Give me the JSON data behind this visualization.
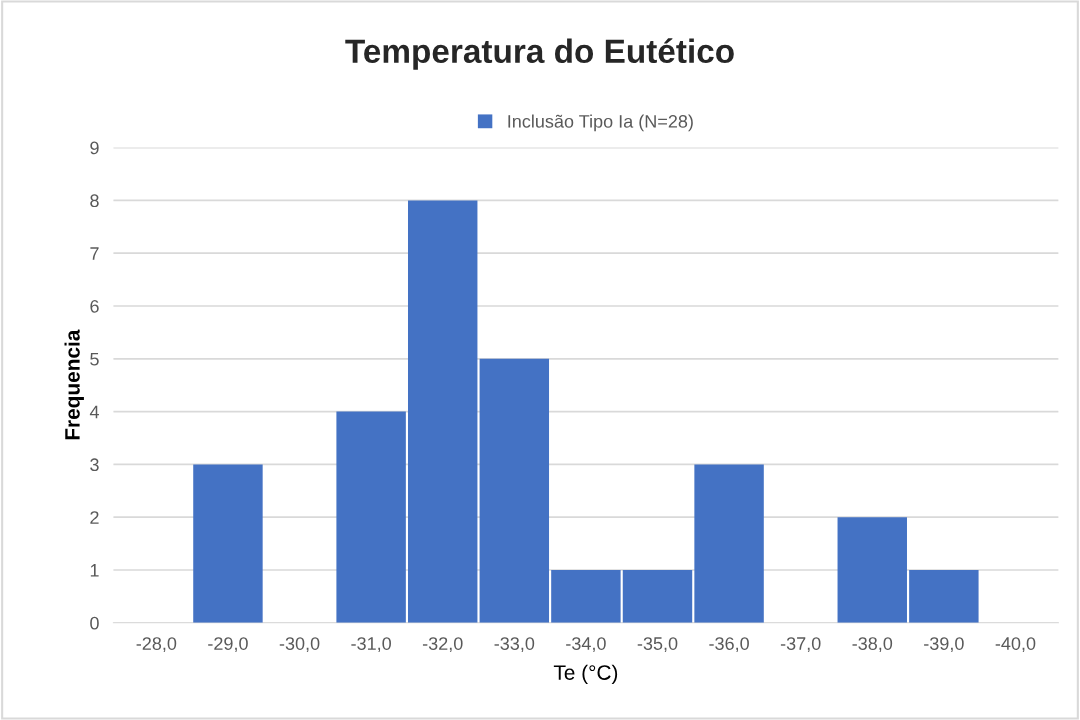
{
  "chart_data": {
    "type": "bar",
    "title": "Temperatura do Eutético",
    "xlabel": "Te (°C)",
    "ylabel": "Frequencia",
    "categories": [
      "-28,0",
      "-29,0",
      "-30,0",
      "-31,0",
      "-32,0",
      "-33,0",
      "-34,0",
      "-35,0",
      "-36,0",
      "-37,0",
      "-38,0",
      "-39,0",
      "-40,0"
    ],
    "series": [
      {
        "name": "Inclusão Tipo Ia (N=28)",
        "color": "#4472c4",
        "values": [
          0,
          3,
          0,
          4,
          8,
          5,
          1,
          1,
          3,
          0,
          2,
          1,
          0
        ]
      }
    ],
    "ylim": [
      0,
      9
    ],
    "yticks": [
      0,
      1,
      2,
      3,
      4,
      5,
      6,
      7,
      8,
      9
    ],
    "grid": "y",
    "legend": "top"
  }
}
